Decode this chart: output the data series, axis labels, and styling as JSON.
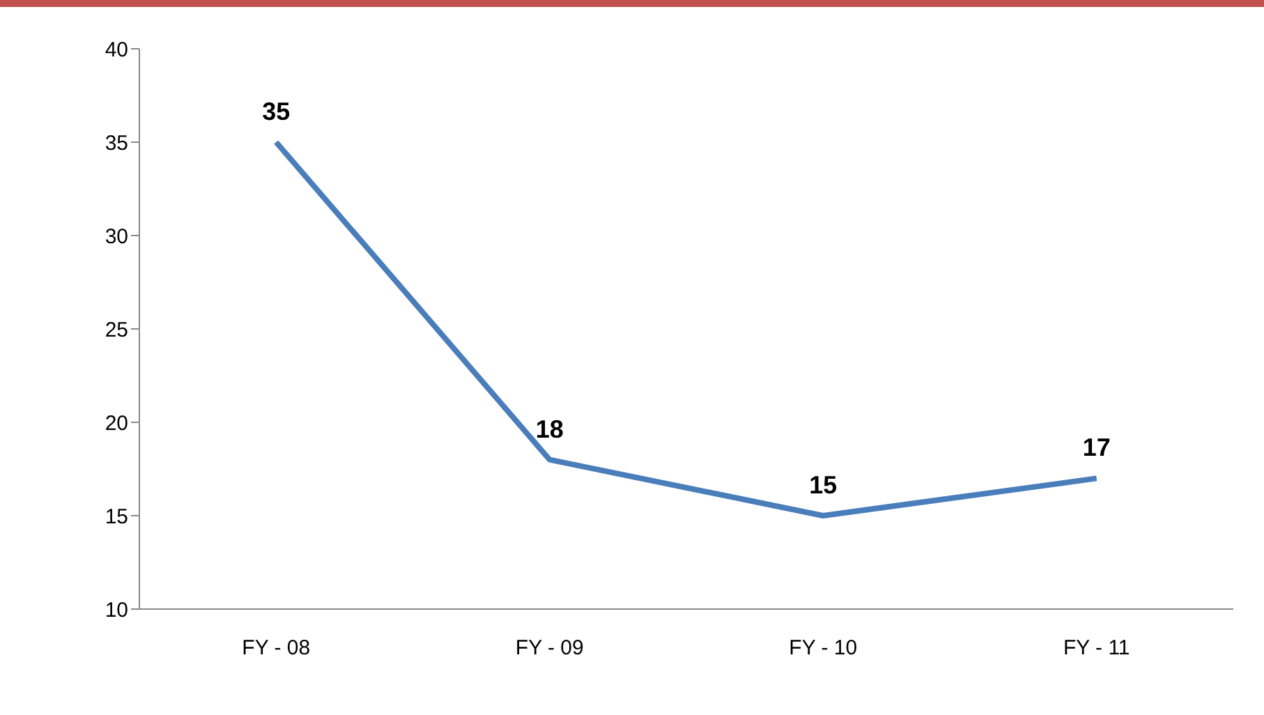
{
  "chart_data": {
    "type": "line",
    "categories": [
      "FY - 08",
      "FY - 09",
      "FY - 10",
      "FY - 11"
    ],
    "series": [
      {
        "color": "#4a7ebb",
        "values": [
          35,
          18,
          15,
          17
        ]
      }
    ],
    "ylim": [
      10,
      40
    ],
    "yticks": [
      10,
      15,
      20,
      25,
      30,
      35,
      40
    ],
    "data_labels": true,
    "grid": false,
    "legend": false,
    "marker": "none",
    "line_style": "solid"
  }
}
